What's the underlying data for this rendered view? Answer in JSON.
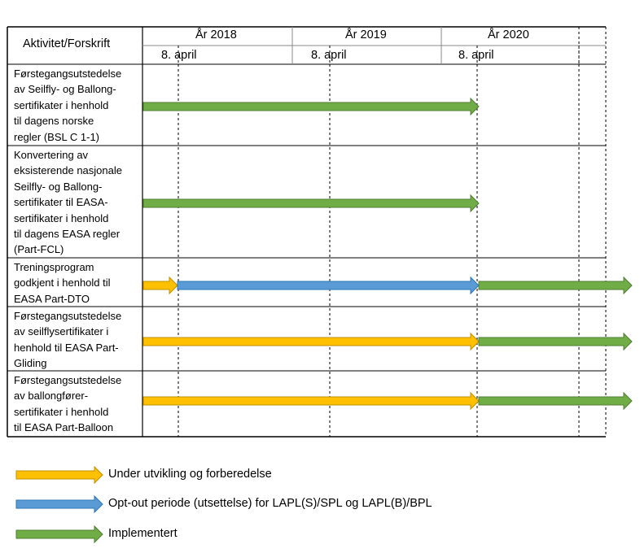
{
  "header": {
    "activity_label": "Aktivitet/Forskrift",
    "years": [
      "År 2018",
      "År 2019",
      "År 2020"
    ],
    "dates": [
      "8. april",
      "8. april",
      "8. april"
    ]
  },
  "rows": [
    {
      "label": "Førstegangsutstedelse\nav Seilfly- og Ballong-\nsertifikater i henhold\ntil dagens norske\nregler (BSL C 1-1)",
      "phases": [
        {
          "type": "implemented",
          "start": "start",
          "end": "8. april 2020"
        }
      ]
    },
    {
      "label": "Konvertering av\neksisterende nasjonale\nSeilfly- og Ballong-\nsertifikater til EASA-\nsertifikater i henhold\ntil dagens EASA regler\n(Part-FCL)",
      "phases": [
        {
          "type": "implemented",
          "start": "start",
          "end": "8. april 2020"
        }
      ]
    },
    {
      "label": "Treningsprogram\ngodkjent i henhold til\nEASA Part-DTO",
      "phases": [
        {
          "type": "development",
          "start": "start",
          "end": "8. april 2018"
        },
        {
          "type": "opt_out",
          "start": "8. april 2018",
          "end": "8. april 2020"
        },
        {
          "type": "implemented",
          "start": "8. april 2020",
          "end": "beyond"
        }
      ]
    },
    {
      "label": "Førstegangsutstedelse\nav seilflysertifikater i\nhenhold til EASA Part-\nGliding",
      "phases": [
        {
          "type": "development",
          "start": "start",
          "end": "8. april 2020"
        },
        {
          "type": "implemented",
          "start": "8. april 2020",
          "end": "beyond"
        }
      ]
    },
    {
      "label": "Førstegangsutstedelse\nav ballongfører-\nsertifikater i henhold\ntil EASA Part-Balloon",
      "phases": [
        {
          "type": "development",
          "start": "start",
          "end": "8. april 2020"
        },
        {
          "type": "implemented",
          "start": "8. april 2020",
          "end": "beyond"
        }
      ]
    }
  ],
  "legend": [
    {
      "type": "development",
      "label": "Under utvikling og forberedelse"
    },
    {
      "type": "opt_out",
      "label": "Opt-out periode (utsettelse) for LAPL(S)/SPL og LAPL(B)/BPL"
    },
    {
      "type": "implemented",
      "label": "Implementert"
    }
  ],
  "colors": {
    "development": {
      "fill": "#ffc000",
      "stroke": "#bf9000"
    },
    "opt_out": {
      "fill": "#5b9bd5",
      "stroke": "#2e75b6"
    },
    "implemented": {
      "fill": "#70ad47",
      "stroke": "#507e32"
    }
  }
}
